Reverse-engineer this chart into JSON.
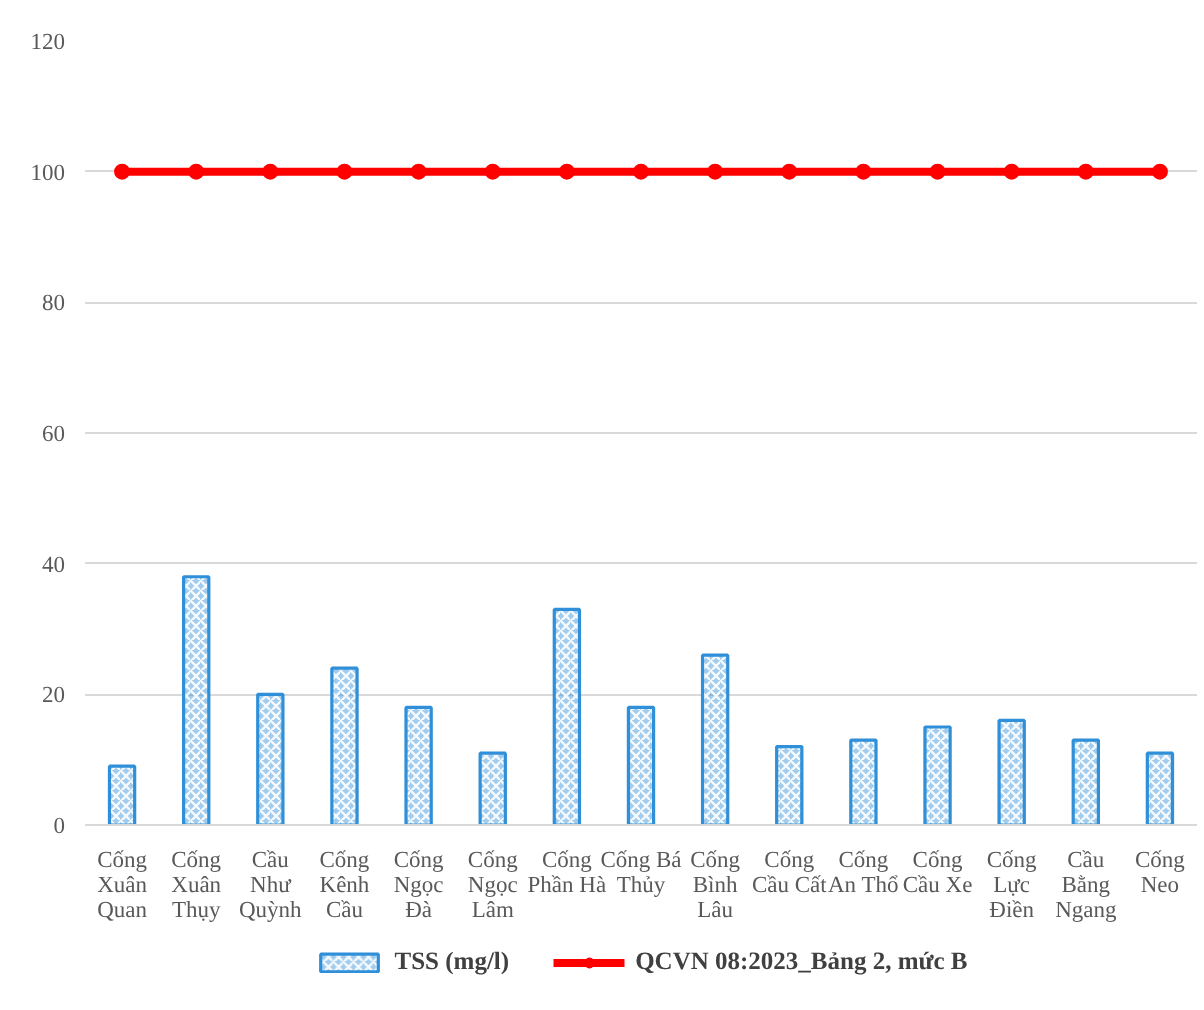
{
  "chart_data": {
    "type": "bar",
    "categories": [
      "Cống\nXuân\nQuan",
      "Cống\nXuân\nThụy",
      "Cầu\nNhư\nQuỳnh",
      "Cống\nKênh\nCầu",
      "Cống\nNgọc\nĐà",
      "Cống\nNgọc\nLâm",
      "Cống\nPhần Hà",
      "Cống Bá\nThủy",
      "Cống\nBình\nLâu",
      "Cống\nCầu Cất",
      "Cống\nAn Thổ",
      "Cống\nCầu Xe",
      "Cống\nLực\nĐiền",
      "Cầu\nBằng\nNgang",
      "Cống\nNeo"
    ],
    "series": [
      {
        "name": "TSS (mg/l)",
        "color": "#2f8fd8",
        "values": [
          9,
          38,
          20,
          24,
          18,
          11,
          33,
          18,
          26,
          12,
          13,
          15,
          16,
          13,
          11
        ]
      },
      {
        "name": "QCVN 08:2023_Bảng 2, mức B",
        "type": "line",
        "color": "#ff0000",
        "values": [
          100,
          100,
          100,
          100,
          100,
          100,
          100,
          100,
          100,
          100,
          100,
          100,
          100,
          100,
          100
        ]
      }
    ],
    "ylim": [
      0,
      120
    ],
    "yticks": [
      0,
      20,
      40,
      60,
      80,
      100,
      120
    ],
    "grid": "y",
    "legend": "bottom",
    "marker": "circle"
  }
}
